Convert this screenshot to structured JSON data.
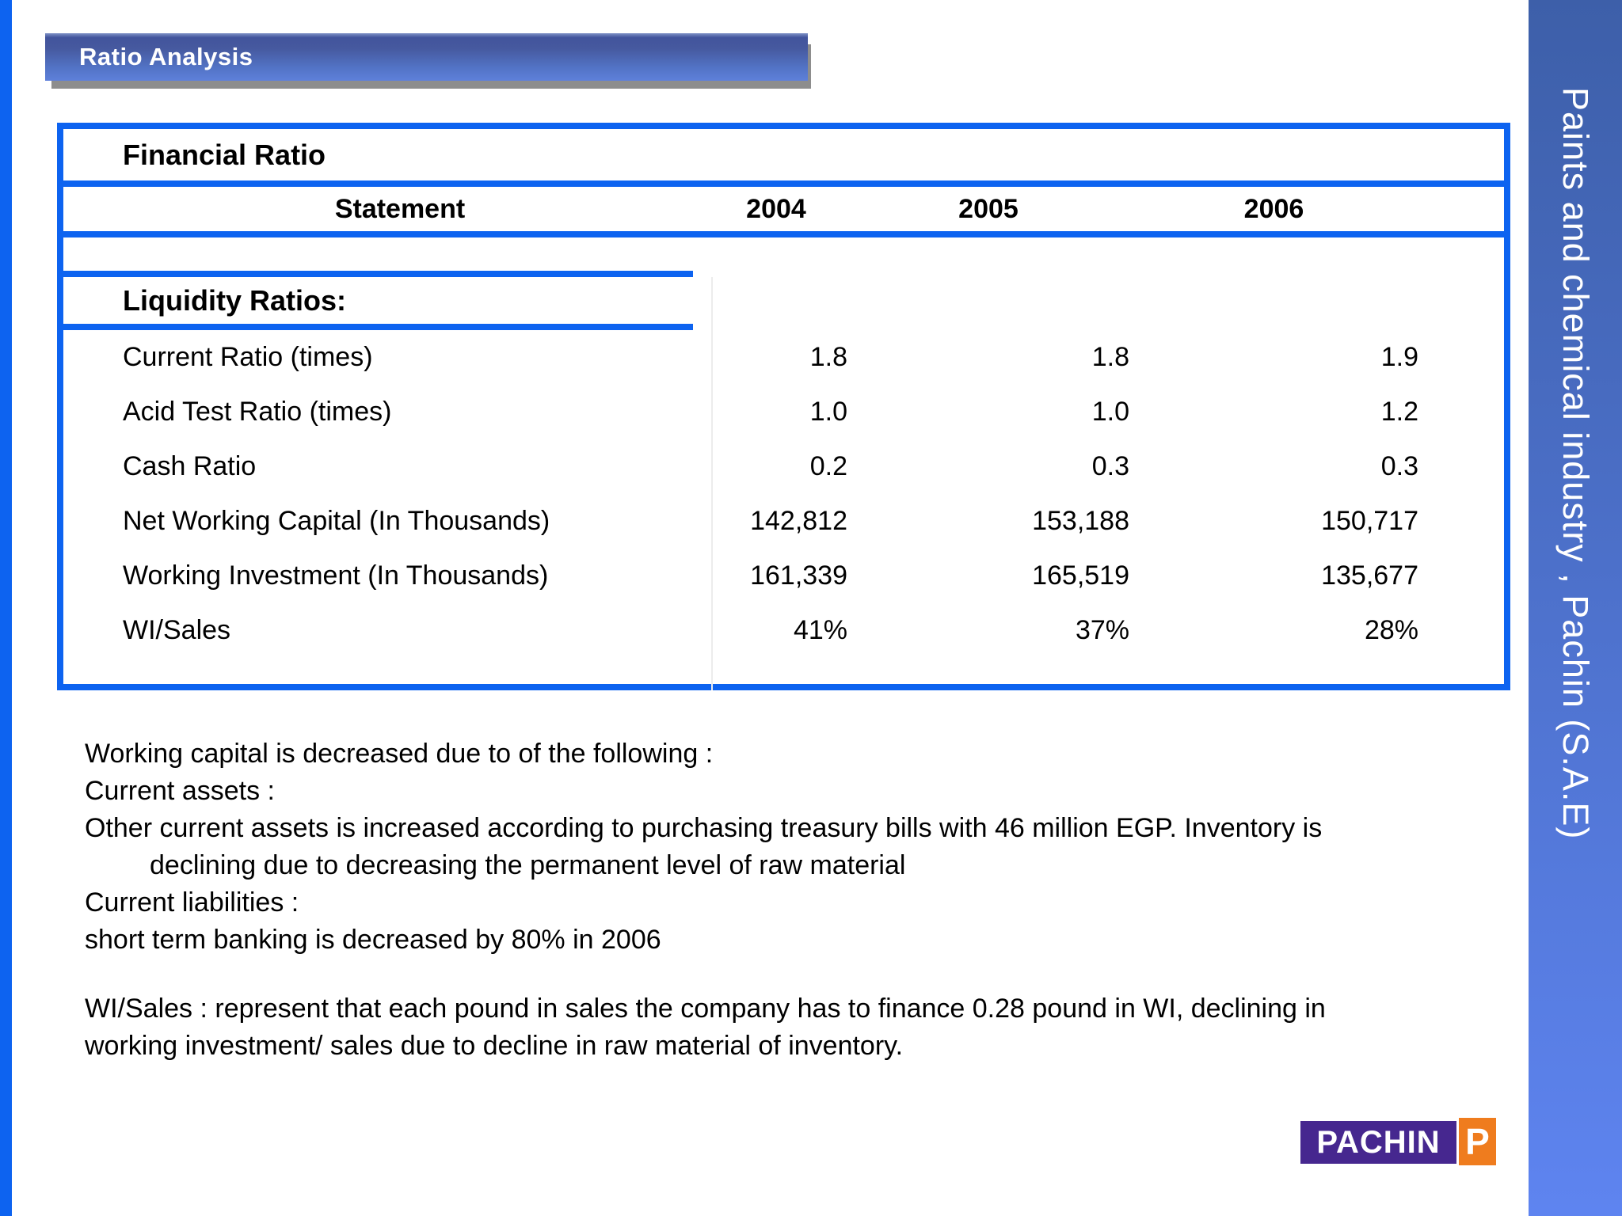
{
  "header": {
    "title": "Ratio Analysis"
  },
  "sidebar": {
    "text": "Paints and chemical industry , Pachin (S.A.E)"
  },
  "table": {
    "title": "Financial Ratio",
    "columns": [
      "Statement",
      "2004",
      "2005",
      "2006"
    ],
    "section_heading": "Liquidity Ratios:",
    "rows": [
      {
        "label": "Current Ratio (times)",
        "values": [
          "1.8",
          "1.8",
          "1.9"
        ]
      },
      {
        "label": "Acid Test Ratio (times)",
        "values": [
          "1.0",
          "1.0",
          "1.2"
        ]
      },
      {
        "label": "Cash Ratio",
        "values": [
          "0.2",
          "0.3",
          "0.3"
        ]
      },
      {
        "label": "Net Working Capital (In Thousands)",
        "values": [
          "142,812",
          "153,188",
          "150,717"
        ]
      },
      {
        "label": "Working Investment (In Thousands)",
        "values": [
          "161,339",
          "165,519",
          "135,677"
        ]
      },
      {
        "label": "WI/Sales",
        "values": [
          "41%",
          "37%",
          "28%"
        ]
      }
    ]
  },
  "notes": {
    "lines": [
      "Working capital is decreased due to of the following :",
      "Current assets :",
      "Other current assets is increased according to purchasing treasury bills with 46 million EGP. Inventory is",
      "declining due to decreasing the permanent level of raw material",
      "Current liabilities :",
      "short term banking is decreased by 80% in 2006"
    ],
    "para2": [
      "WI/Sales : represent that each pound in sales the company has to finance 0.28 pound in WI, declining in",
      "working investment/ sales due to decline in raw material of inventory."
    ]
  },
  "logo": {
    "wordmark": "PACHIN",
    "monogram": "P"
  },
  "colors": {
    "accent": "#0d63f0",
    "sidebarTop": "#3d5fa9",
    "sidebarBottom": "#5e84f0",
    "titlebarTop": "#42549c",
    "titlebarBottom": "#5e80da",
    "shadow": "#8d8d8d",
    "logoPurple": "#46278f",
    "logoOrange": "#ef7c1e"
  }
}
